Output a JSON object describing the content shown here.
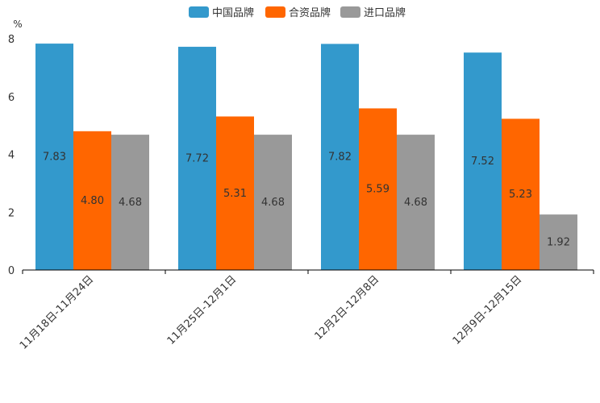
{
  "chart_data": {
    "type": "bar",
    "title": "",
    "xlabel": "",
    "ylabel": "%",
    "ylim": [
      0,
      8
    ],
    "yticks": [
      0,
      2,
      4,
      6,
      8
    ],
    "grid": false,
    "legend_position": "top-center",
    "categories": [
      "11月18日-11月24日",
      "11月25日-12月1日",
      "12月2日-12月8日",
      "12月9日-12月15日"
    ],
    "series": [
      {
        "name": "中国品牌",
        "color": "#3399cc",
        "values": [
          7.83,
          7.72,
          7.82,
          7.52
        ],
        "labels": [
          "7.83",
          "7.72",
          "7.82",
          "7.52"
        ]
      },
      {
        "name": "合资品牌",
        "color": "#ff6600",
        "values": [
          4.8,
          5.31,
          5.59,
          5.23
        ],
        "labels": [
          "4.80",
          "5.31",
          "5.59",
          "5.23"
        ]
      },
      {
        "name": "进口品牌",
        "color": "#999999",
        "values": [
          4.68,
          4.68,
          4.68,
          1.92
        ],
        "labels": [
          "4.68",
          "4.68",
          "4.68",
          "1.92"
        ]
      }
    ]
  }
}
